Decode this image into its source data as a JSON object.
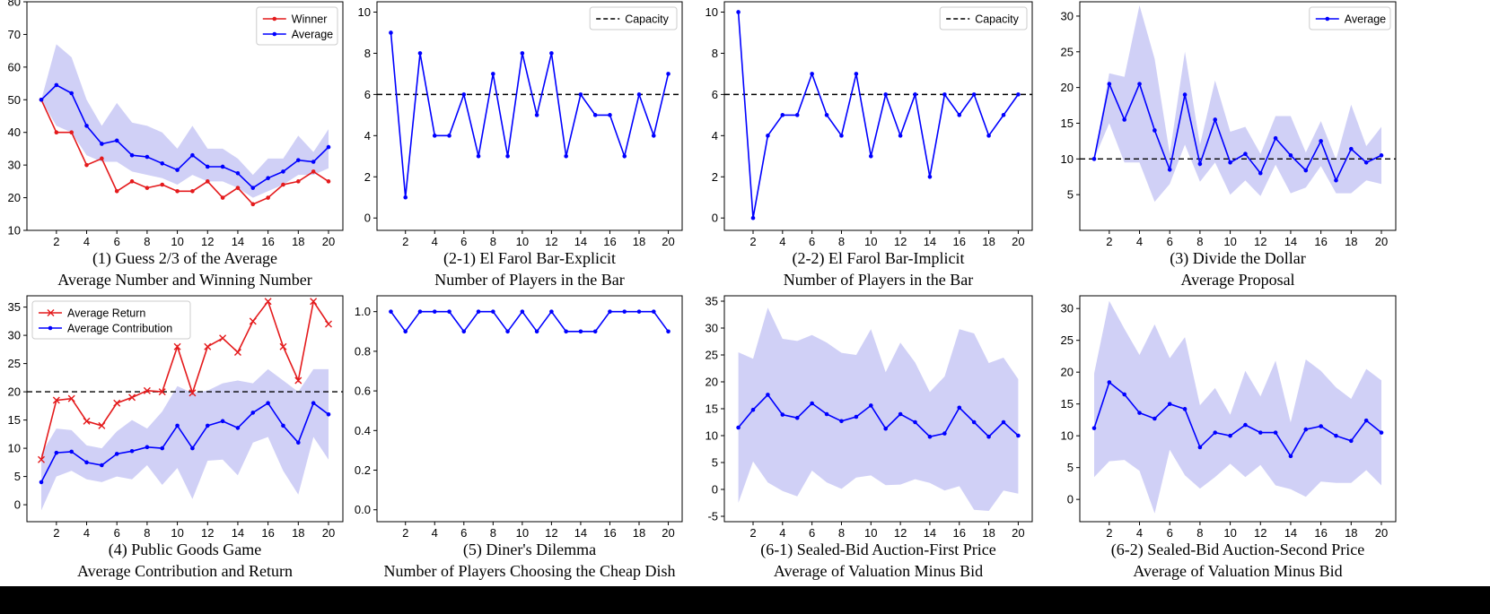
{
  "colors": {
    "blue": "#0000ff",
    "red": "#e41a1c",
    "band": "#c8c8f5",
    "black": "#000000"
  },
  "chart_data": [
    {
      "type": "line",
      "caption": [
        "(1) Guess 2/3 of the Average",
        "Average Number and Winning Number"
      ],
      "x": [
        1,
        2,
        3,
        4,
        5,
        6,
        7,
        8,
        9,
        10,
        11,
        12,
        13,
        14,
        15,
        16,
        17,
        18,
        19,
        20
      ],
      "xticks": [
        2,
        4,
        6,
        8,
        10,
        12,
        14,
        16,
        18,
        20
      ],
      "ylim": [
        10,
        80
      ],
      "yticks": [
        10,
        20,
        30,
        40,
        50,
        60,
        70,
        80
      ],
      "legend": "top-right",
      "series": [
        {
          "name": "Winner",
          "color": "red",
          "marker": "dot",
          "values": [
            50,
            40,
            40,
            30,
            32,
            22,
            25,
            23,
            24,
            22,
            22,
            25,
            20,
            23,
            18,
            20,
            24,
            25,
            28,
            25
          ]
        },
        {
          "name": "Average",
          "color": "blue",
          "marker": "dot",
          "values": [
            50,
            54.5,
            52,
            42,
            36.5,
            37.5,
            33,
            32.5,
            30.5,
            28.5,
            33,
            29.5,
            29.5,
            27.5,
            23,
            26,
            28,
            31.5,
            31,
            35.5
          ],
          "band_low": [
            50,
            42,
            40,
            33,
            31,
            31,
            28,
            27,
            26,
            24,
            27,
            25,
            25,
            23,
            20,
            22,
            24,
            27,
            27,
            29
          ],
          "band_high": [
            50,
            67,
            63,
            50,
            42,
            49,
            43,
            42,
            40,
            35,
            42,
            35,
            35,
            32,
            27,
            32,
            32,
            39,
            34,
            41
          ]
        }
      ]
    },
    {
      "type": "line",
      "caption": [
        "(2-1) El Farol Bar-Explicit",
        "Number of Players in the Bar"
      ],
      "x": [
        1,
        2,
        3,
        4,
        5,
        6,
        7,
        8,
        9,
        10,
        11,
        12,
        13,
        14,
        15,
        16,
        17,
        18,
        19,
        20
      ],
      "xticks": [
        2,
        4,
        6,
        8,
        10,
        12,
        14,
        16,
        18,
        20
      ],
      "ylim": [
        -0.6,
        10.5
      ],
      "yticks": [
        0,
        2,
        4,
        6,
        8,
        10
      ],
      "legend": "top-right",
      "hline": {
        "y": 6,
        "name": "Capacity"
      },
      "series": [
        {
          "name": "",
          "color": "blue",
          "marker": "dot",
          "values": [
            9,
            1,
            8,
            4,
            4,
            6,
            3,
            7,
            3,
            8,
            5,
            8,
            3,
            6,
            5,
            5,
            3,
            6,
            4,
            7
          ]
        }
      ]
    },
    {
      "type": "line",
      "caption": [
        "(2-2) El Farol Bar-Implicit",
        "Number of Players in the Bar"
      ],
      "x": [
        1,
        2,
        3,
        4,
        5,
        6,
        7,
        8,
        9,
        10,
        11,
        12,
        13,
        14,
        15,
        16,
        17,
        18,
        19,
        20
      ],
      "xticks": [
        2,
        4,
        6,
        8,
        10,
        12,
        14,
        16,
        18,
        20
      ],
      "ylim": [
        -0.6,
        10.5
      ],
      "yticks": [
        0,
        2,
        4,
        6,
        8,
        10
      ],
      "legend": "top-right",
      "hline": {
        "y": 6,
        "name": "Capacity"
      },
      "series": [
        {
          "name": "",
          "color": "blue",
          "marker": "dot",
          "values": [
            10,
            0,
            4,
            5,
            5,
            7,
            5,
            4,
            7,
            3,
            6,
            4,
            6,
            2,
            6,
            5,
            6,
            4,
            5,
            6
          ]
        }
      ]
    },
    {
      "type": "line",
      "caption": [
        "(3) Divide the Dollar",
        "Average Proposal"
      ],
      "x": [
        1,
        2,
        3,
        4,
        5,
        6,
        7,
        8,
        9,
        10,
        11,
        12,
        13,
        14,
        15,
        16,
        17,
        18,
        19,
        20
      ],
      "xticks": [
        2,
        4,
        6,
        8,
        10,
        12,
        14,
        16,
        18,
        20
      ],
      "ylim": [
        0,
        32
      ],
      "yticks": [
        5,
        10,
        15,
        20,
        25,
        30
      ],
      "legend": "top-right",
      "hline": {
        "y": 10,
        "name": ""
      },
      "series": [
        {
          "name": "Average",
          "color": "blue",
          "marker": "dot",
          "values": [
            10,
            20.5,
            15.5,
            20.5,
            14,
            8.5,
            19,
            9.3,
            15.5,
            9.5,
            10.7,
            8,
            12.9,
            10.5,
            8.4,
            12.5,
            7,
            11.4,
            9.5,
            10.5
          ],
          "band_low": [
            10,
            15,
            9.5,
            9.5,
            4,
            6.5,
            12,
            6.8,
            9.5,
            5,
            7,
            4.8,
            9.2,
            5.2,
            6,
            9,
            5.2,
            5.2,
            7,
            6.5
          ],
          "band_high": [
            10,
            22,
            21.5,
            31.5,
            24,
            10.7,
            25,
            12,
            21,
            13.8,
            14.5,
            10.7,
            16,
            16,
            10.9,
            15.3,
            9.9,
            17.6,
            11.8,
            14.5
          ]
        }
      ]
    },
    {
      "type": "line",
      "caption": [
        "(4) Public Goods Game",
        "Average Contribution and Return"
      ],
      "x": [
        1,
        2,
        3,
        4,
        5,
        6,
        7,
        8,
        9,
        10,
        11,
        12,
        13,
        14,
        15,
        16,
        17,
        18,
        19,
        20
      ],
      "xticks": [
        2,
        4,
        6,
        8,
        10,
        12,
        14,
        16,
        18,
        20
      ],
      "ylim": [
        -3,
        37
      ],
      "yticks": [
        0,
        5,
        10,
        15,
        20,
        25,
        30,
        35
      ],
      "legend": "top-left",
      "hline": {
        "y": 20,
        "name": ""
      },
      "series": [
        {
          "name": "Average Return",
          "color": "red",
          "marker": "x",
          "values": [
            8,
            18.5,
            18.8,
            14.8,
            14,
            18,
            19,
            20.2,
            20,
            28,
            19.8,
            28,
            29.5,
            27,
            32.5,
            36,
            28,
            22,
            36,
            32
          ]
        },
        {
          "name": "Average Contribution",
          "color": "blue",
          "marker": "dot",
          "values": [
            4,
            9.2,
            9.4,
            7.5,
            7,
            9,
            9.5,
            10.2,
            10,
            14,
            10,
            14,
            14.8,
            13.6,
            16.3,
            18,
            14,
            11,
            18,
            16
          ],
          "band_low": [
            -1,
            5,
            6,
            4.5,
            4,
            5,
            4.5,
            7,
            3.5,
            6.5,
            1,
            7.8,
            8,
            5.2,
            11,
            12,
            6,
            1.8,
            12,
            8
          ],
          "band_high": [
            9,
            13.5,
            13.2,
            10.5,
            10,
            13,
            15,
            13.5,
            16.5,
            21,
            19.8,
            20.2,
            21.5,
            22,
            21.5,
            24,
            22,
            20,
            24,
            24
          ]
        }
      ]
    },
    {
      "type": "line",
      "caption": [
        "(5) Diner's Dilemma",
        "Number of Players Choosing the Cheap Dish"
      ],
      "x": [
        1,
        2,
        3,
        4,
        5,
        6,
        7,
        8,
        9,
        10,
        11,
        12,
        13,
        14,
        15,
        16,
        17,
        18,
        19,
        20
      ],
      "xticks": [
        2,
        4,
        6,
        8,
        10,
        12,
        14,
        16,
        18,
        20
      ],
      "ylim": [
        -0.06,
        1.08
      ],
      "yticks": [
        0.0,
        0.2,
        0.4,
        0.6,
        0.8,
        1.0
      ],
      "ydecimals": 1,
      "legend": "none",
      "series": [
        {
          "name": "",
          "color": "blue",
          "marker": "dot",
          "values": [
            1,
            0.9,
            1,
            1,
            1,
            0.9,
            1,
            1,
            0.9,
            1,
            0.9,
            1,
            0.9,
            0.9,
            0.9,
            1,
            1,
            1,
            1,
            0.9
          ]
        }
      ]
    },
    {
      "type": "line",
      "caption": [
        "(6-1) Sealed-Bid Auction-First Price",
        "Average of Valuation Minus Bid"
      ],
      "x": [
        1,
        2,
        3,
        4,
        5,
        6,
        7,
        8,
        9,
        10,
        11,
        12,
        13,
        14,
        15,
        16,
        17,
        18,
        19,
        20
      ],
      "xticks": [
        2,
        4,
        6,
        8,
        10,
        12,
        14,
        16,
        18,
        20
      ],
      "ylim": [
        -6,
        36
      ],
      "yticks": [
        -5,
        0,
        5,
        10,
        15,
        20,
        25,
        30,
        35
      ],
      "legend": "none",
      "series": [
        {
          "name": "",
          "color": "blue",
          "marker": "dot",
          "values": [
            11.5,
            14.8,
            17.6,
            13.9,
            13.3,
            16,
            14,
            12.7,
            13.5,
            15.6,
            11.3,
            14,
            12.5,
            9.8,
            10.4,
            15.2,
            12.5,
            9.8,
            12.5,
            10
          ],
          "band_low": [
            -2.5,
            5.2,
            1.3,
            -0.3,
            -1.3,
            3.5,
            1.3,
            0.1,
            2.2,
            2.6,
            0.8,
            0.9,
            1.9,
            1.2,
            -0.2,
            0.6,
            -3.8,
            -4,
            -0.2,
            -0.8
          ],
          "band_high": [
            25.5,
            24.3,
            33.8,
            28,
            27.6,
            28.7,
            27.3,
            25.4,
            25,
            29.8,
            21.8,
            27.3,
            23.6,
            18.1,
            21,
            29.8,
            29,
            23.5,
            24.5,
            20.5
          ]
        }
      ]
    },
    {
      "type": "line",
      "caption": [
        "(6-2) Sealed-Bid Auction-Second Price",
        "Average of Valuation Minus Bid"
      ],
      "x": [
        1,
        2,
        3,
        4,
        5,
        6,
        7,
        8,
        9,
        10,
        11,
        12,
        13,
        14,
        15,
        16,
        17,
        18,
        19,
        20
      ],
      "xticks": [
        2,
        4,
        6,
        8,
        10,
        12,
        14,
        16,
        18,
        20
      ],
      "ylim": [
        -3.5,
        32
      ],
      "yticks": [
        0,
        5,
        10,
        15,
        20,
        25,
        30
      ],
      "legend": "none",
      "series": [
        {
          "name": "",
          "color": "blue",
          "marker": "dot",
          "values": [
            11.2,
            18.4,
            16.5,
            13.6,
            12.7,
            15,
            14.2,
            8.2,
            10.5,
            10,
            11.7,
            10.5,
            10.5,
            6.8,
            11,
            11.5,
            10,
            9.2,
            12.4,
            10.5
          ],
          "band_low": [
            3.5,
            6,
            6.2,
            4.5,
            -2.2,
            7.8,
            3.8,
            1.7,
            3.5,
            5.6,
            3.5,
            5.4,
            2.2,
            1.6,
            0.4,
            2.8,
            2.6,
            2.6,
            4.6,
            2.2
          ],
          "band_high": [
            19.8,
            31.2,
            26.8,
            22.7,
            27.5,
            22.2,
            25.5,
            14.8,
            17.5,
            13.3,
            20.2,
            16.2,
            21.8,
            12.1,
            22,
            20.2,
            17.6,
            15.8,
            20.5,
            18.7
          ]
        }
      ]
    }
  ]
}
